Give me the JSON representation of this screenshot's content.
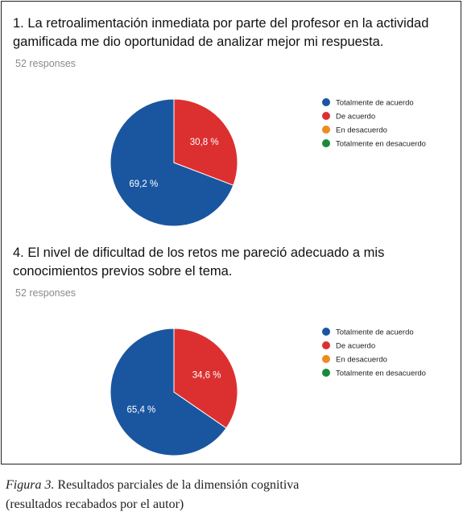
{
  "chart_data": [
    {
      "type": "pie",
      "title": "1. La retroalimentación inmediata por parte del profesor en la actividad gamificada me dio oportunidad de analizar mejor mi respuesta.",
      "subtitle": "52 responses",
      "categories": [
        "Totalmente de acuerdo",
        "De acuerdo",
        "En desacuerdo",
        "Totalmente en desacuerdo"
      ],
      "values": [
        69.2,
        30.8,
        0,
        0
      ],
      "data_labels": [
        "69,2 %",
        "30,8 %",
        "",
        ""
      ],
      "colors": [
        "#1a56a0",
        "#dc3030",
        "#f08a1e",
        "#1a8a3a"
      ],
      "legend": "right"
    },
    {
      "type": "pie",
      "title": "4. El nivel de dificultad de los retos me pareció adecuado a mis conocimientos previos sobre el tema.",
      "subtitle": "52 responses",
      "categories": [
        "Totalmente de acuerdo",
        "De acuerdo",
        "En desacuerdo",
        "Totalmente en desacuerdo"
      ],
      "values": [
        65.4,
        34.6,
        0,
        0
      ],
      "data_labels": [
        "65,4 %",
        "34,6 %",
        "",
        ""
      ],
      "colors": [
        "#1a56a0",
        "#dc3030",
        "#f08a1e",
        "#1a8a3a"
      ],
      "legend": "right"
    }
  ],
  "caption": {
    "figure_label": "Figura 3.",
    "line1": " Resultados parciales de la dimensión cognitiva",
    "line2": "(resultados recabados por el autor)"
  }
}
